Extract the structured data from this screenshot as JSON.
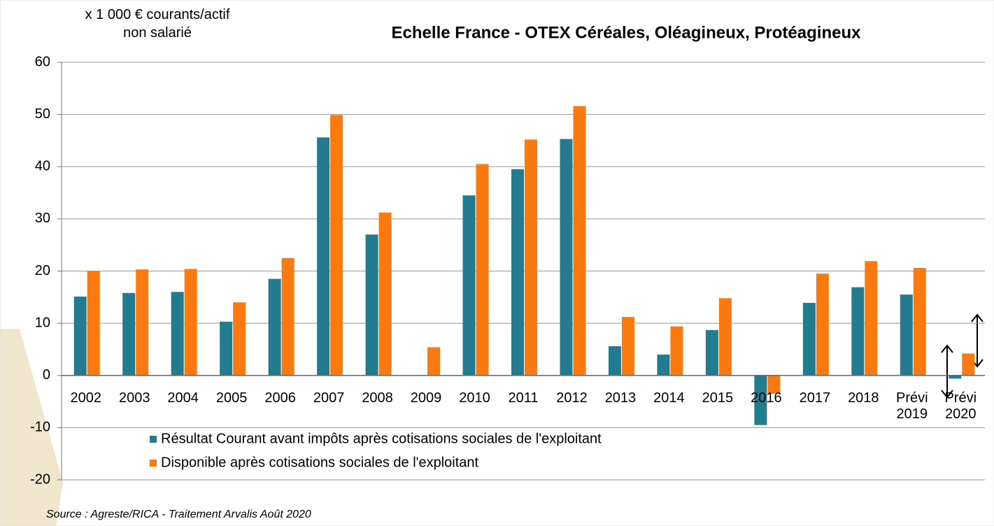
{
  "chart_data": {
    "type": "bar",
    "title": "Echelle France - OTEX Céréales, Oléagineux, Protéagineux",
    "y_axis_label": "x 1 000 € courants/actif non salarié",
    "source": "Source : Agreste/RICA - Traitement Arvalis Août 2020",
    "categories": [
      "2002",
      "2003",
      "2004",
      "2005",
      "2006",
      "2007",
      "2008",
      "2009",
      "2010",
      "2011",
      "2012",
      "2013",
      "2014",
      "2015",
      "2016",
      "2017",
      "2018",
      "Prévi 2019",
      "Prévi 2020"
    ],
    "series": [
      {
        "name": "Résultat Courant avant impôts après cotisations sociales de l'exploitant",
        "color": "#237b8f",
        "values": [
          15.1,
          15.8,
          16,
          10.3,
          18.5,
          45.6,
          27,
          0,
          34.5,
          39.5,
          45.3,
          5.6,
          4,
          8.7,
          -9.5,
          13.9,
          16.9,
          15.5,
          -0.6
        ]
      },
      {
        "name": "Disponible après cotisations sociales de l'exploitant",
        "color": "#fb7a0f",
        "values": [
          20,
          20.3,
          20.4,
          14,
          22.5,
          49.9,
          31.2,
          5.4,
          40.5,
          45.2,
          51.6,
          11.2,
          9.4,
          14.8,
          -3.5,
          19.5,
          21.9,
          20.6,
          4.2
        ]
      }
    ],
    "ylim": [
      -20,
      60
    ],
    "yticks": [
      -20,
      -10,
      0,
      10,
      20,
      30,
      40,
      50,
      60
    ],
    "grid": true
  }
}
